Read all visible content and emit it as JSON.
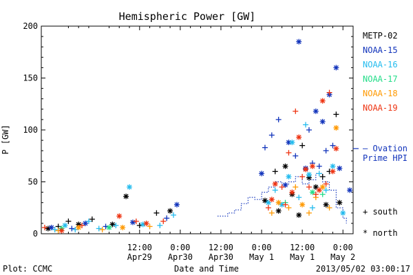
{
  "chart_data": {
    "type": "scatter",
    "title": "Hemispheric Power [GW]",
    "ylabel": "P [GW]",
    "xlabel": "Date and Time",
    "ylim": [
      0,
      200
    ],
    "yticks": [
      0,
      50,
      100,
      150,
      200
    ],
    "xlim_hours": [
      -17,
      75
    ],
    "x_unit": "hours from 2013/04/29 00:00",
    "xticks": [
      {
        "h": 12,
        "top": "12:00",
        "bottom": "Apr29"
      },
      {
        "h": 24,
        "top": "0:00",
        "bottom": "Apr30"
      },
      {
        "h": 36,
        "top": "12:00",
        "bottom": "Apr30"
      },
      {
        "h": 48,
        "top": "0:00",
        "bottom": "May 1"
      },
      {
        "h": 60,
        "top": "12:00",
        "bottom": "May 1"
      },
      {
        "h": 72,
        "top": "0:00",
        "bottom": "May 2"
      }
    ],
    "legend": {
      "placement": "right",
      "entries": [
        {
          "name": "METP-02",
          "color": "#000000"
        },
        {
          "name": "NOAA-15",
          "color": "#1133bb"
        },
        {
          "name": "NOAA-16",
          "color": "#22bbee"
        },
        {
          "name": "NOAA-17",
          "color": "#22dd88"
        },
        {
          "name": "NOAA-18",
          "color": "#ff9900"
        },
        {
          "name": "NOAA-19",
          "color": "#ee3311"
        }
      ],
      "ovation_label_1": "— Ovation",
      "ovation_label_2": "Prime HPI",
      "ovation_color": "#1133bb",
      "south_label": "+ south",
      "north_label": "* north"
    },
    "footer": {
      "left": "Plot: CCMC",
      "right": "2013/05/02 03:00:17"
    },
    "ovation_hpi": [
      [
        35,
        17
      ],
      [
        38,
        17
      ],
      [
        38,
        20
      ],
      [
        40,
        20
      ],
      [
        40,
        23
      ],
      [
        42,
        23
      ],
      [
        42,
        29
      ],
      [
        44,
        29
      ],
      [
        44,
        35
      ],
      [
        46,
        35
      ],
      [
        46,
        33
      ],
      [
        48,
        33
      ],
      [
        48,
        40
      ],
      [
        50,
        40
      ],
      [
        50,
        45
      ],
      [
        52,
        45
      ],
      [
        52,
        50
      ],
      [
        54,
        50
      ],
      [
        54,
        47
      ],
      [
        56,
        47
      ],
      [
        56,
        50
      ],
      [
        58,
        50
      ],
      [
        58,
        55
      ],
      [
        60,
        55
      ],
      [
        60,
        48
      ],
      [
        62,
        48
      ],
      [
        62,
        52
      ],
      [
        64,
        52
      ],
      [
        64,
        58
      ],
      [
        66,
        58
      ],
      [
        66,
        50
      ],
      [
        68,
        50
      ],
      [
        68,
        42
      ],
      [
        70,
        42
      ],
      [
        70,
        25
      ],
      [
        72,
        25
      ],
      [
        72,
        15
      ],
      [
        73,
        15
      ],
      [
        73,
        10
      ]
    ],
    "series": [
      {
        "name": "METP-02",
        "color": "#000000",
        "points": [
          [
            -15,
            5,
            "n"
          ],
          [
            -12,
            7,
            "s"
          ],
          [
            -9,
            12,
            "s"
          ],
          [
            -6,
            9,
            "n"
          ],
          [
            -2,
            14,
            "s"
          ],
          [
            4,
            9,
            "n"
          ],
          [
            8,
            36,
            "n"
          ],
          [
            12,
            8,
            "s"
          ],
          [
            17,
            20,
            "s"
          ],
          [
            21,
            22,
            "n"
          ],
          [
            49,
            32,
            "n"
          ],
          [
            52,
            60,
            "s"
          ],
          [
            53,
            22,
            "n"
          ],
          [
            55,
            65,
            "n"
          ],
          [
            57,
            38,
            "n"
          ],
          [
            59,
            18,
            "n"
          ],
          [
            60,
            85,
            "s"
          ],
          [
            62,
            54,
            "n"
          ],
          [
            64,
            45,
            "n"
          ],
          [
            66,
            55,
            "s"
          ],
          [
            67,
            28,
            "n"
          ],
          [
            68,
            60,
            "s"
          ],
          [
            70,
            115,
            "s"
          ],
          [
            71,
            30,
            "n"
          ]
        ]
      },
      {
        "name": "NOAA-15",
        "color": "#1133bb",
        "points": [
          [
            -14,
            6,
            "n"
          ],
          [
            -8,
            5,
            "s"
          ],
          [
            -4,
            10,
            "n"
          ],
          [
            2,
            7,
            "s"
          ],
          [
            10,
            11,
            "n"
          ],
          [
            20,
            15,
            "s"
          ],
          [
            23,
            28,
            "n"
          ],
          [
            48,
            58,
            "n"
          ],
          [
            49,
            83,
            "s"
          ],
          [
            51,
            95,
            "s"
          ],
          [
            53,
            110,
            "s"
          ],
          [
            55,
            47,
            "n"
          ],
          [
            56,
            88,
            "n"
          ],
          [
            58,
            75,
            "s"
          ],
          [
            59,
            185,
            "n"
          ],
          [
            61,
            63,
            "n"
          ],
          [
            62,
            100,
            "s"
          ],
          [
            63,
            68,
            "s"
          ],
          [
            64,
            118,
            "n"
          ],
          [
            65,
            65,
            "s"
          ],
          [
            66,
            108,
            "n"
          ],
          [
            67,
            80,
            "s"
          ],
          [
            68,
            134,
            "n"
          ],
          [
            69,
            85,
            "s"
          ],
          [
            70,
            160,
            "n"
          ],
          [
            71,
            63,
            "n"
          ],
          [
            74,
            42,
            "n"
          ]
        ]
      },
      {
        "name": "NOAA-16",
        "color": "#22bbee",
        "points": [
          [
            -13,
            4,
            "s"
          ],
          [
            -10,
            8,
            "n"
          ],
          [
            -7,
            4,
            "s"
          ],
          [
            -3,
            12,
            "s"
          ],
          [
            0,
            5,
            "s"
          ],
          [
            5,
            8,
            "s"
          ],
          [
            9,
            45,
            "n"
          ],
          [
            13,
            9,
            "n"
          ],
          [
            18,
            8,
            "s"
          ],
          [
            22,
            18,
            "s"
          ],
          [
            50,
            30,
            "n"
          ],
          [
            52,
            42,
            "s"
          ],
          [
            54,
            28,
            "n"
          ],
          [
            56,
            55,
            "n"
          ],
          [
            57,
            88,
            "n"
          ],
          [
            59,
            35,
            "s"
          ],
          [
            61,
            105,
            "s"
          ],
          [
            62,
            57,
            "n"
          ],
          [
            63,
            25,
            "s"
          ],
          [
            65,
            58,
            "s"
          ],
          [
            67,
            42,
            "s"
          ],
          [
            69,
            65,
            "n"
          ],
          [
            72,
            20,
            "n"
          ]
        ]
      },
      {
        "name": "NOAA-17",
        "color": "#22dd88",
        "points": [
          [
            -11,
            5,
            "n"
          ],
          [
            3,
            6,
            "n"
          ],
          [
            55,
            30,
            "s"
          ],
          [
            63,
            40,
            "n"
          ],
          [
            66,
            38,
            "s"
          ]
        ]
      },
      {
        "name": "NOAA-18",
        "color": "#ff9900",
        "points": [
          [
            -12,
            3,
            "s"
          ],
          [
            -6,
            6,
            "n"
          ],
          [
            1,
            4,
            "s"
          ],
          [
            7,
            6,
            "n"
          ],
          [
            15,
            7,
            "s"
          ],
          [
            51,
            20,
            "s"
          ],
          [
            53,
            30,
            "n"
          ],
          [
            56,
            25,
            "s"
          ],
          [
            58,
            45,
            "s"
          ],
          [
            60,
            28,
            "n"
          ],
          [
            62,
            20,
            "s"
          ],
          [
            64,
            35,
            "s"
          ],
          [
            66,
            45,
            "n"
          ],
          [
            68,
            25,
            "s"
          ],
          [
            70,
            102,
            "n"
          ]
        ]
      },
      {
        "name": "NOAA-19",
        "color": "#ee3311",
        "points": [
          [
            -16,
            6,
            "s"
          ],
          [
            -11,
            3,
            "n"
          ],
          [
            -5,
            8,
            "s"
          ],
          [
            6,
            17,
            "n"
          ],
          [
            11,
            12,
            "s"
          ],
          [
            14,
            10,
            "n"
          ],
          [
            19,
            12,
            "s"
          ],
          [
            50,
            25,
            "s"
          ],
          [
            51,
            33,
            "n"
          ],
          [
            52,
            48,
            "n"
          ],
          [
            54,
            45,
            "s"
          ],
          [
            55,
            28,
            "s"
          ],
          [
            56,
            78,
            "s"
          ],
          [
            57,
            40,
            "n"
          ],
          [
            58,
            118,
            "s"
          ],
          [
            59,
            93,
            "n"
          ],
          [
            60,
            55,
            "s"
          ],
          [
            61,
            62,
            "n"
          ],
          [
            62,
            45,
            "s"
          ],
          [
            63,
            65,
            "n"
          ],
          [
            64,
            38,
            "s"
          ],
          [
            65,
            42,
            "n"
          ],
          [
            66,
            128,
            "n"
          ],
          [
            67,
            48,
            "s"
          ],
          [
            68,
            136,
            "s"
          ],
          [
            69,
            60,
            "n"
          ],
          [
            70,
            82,
            "n"
          ]
        ]
      }
    ]
  }
}
